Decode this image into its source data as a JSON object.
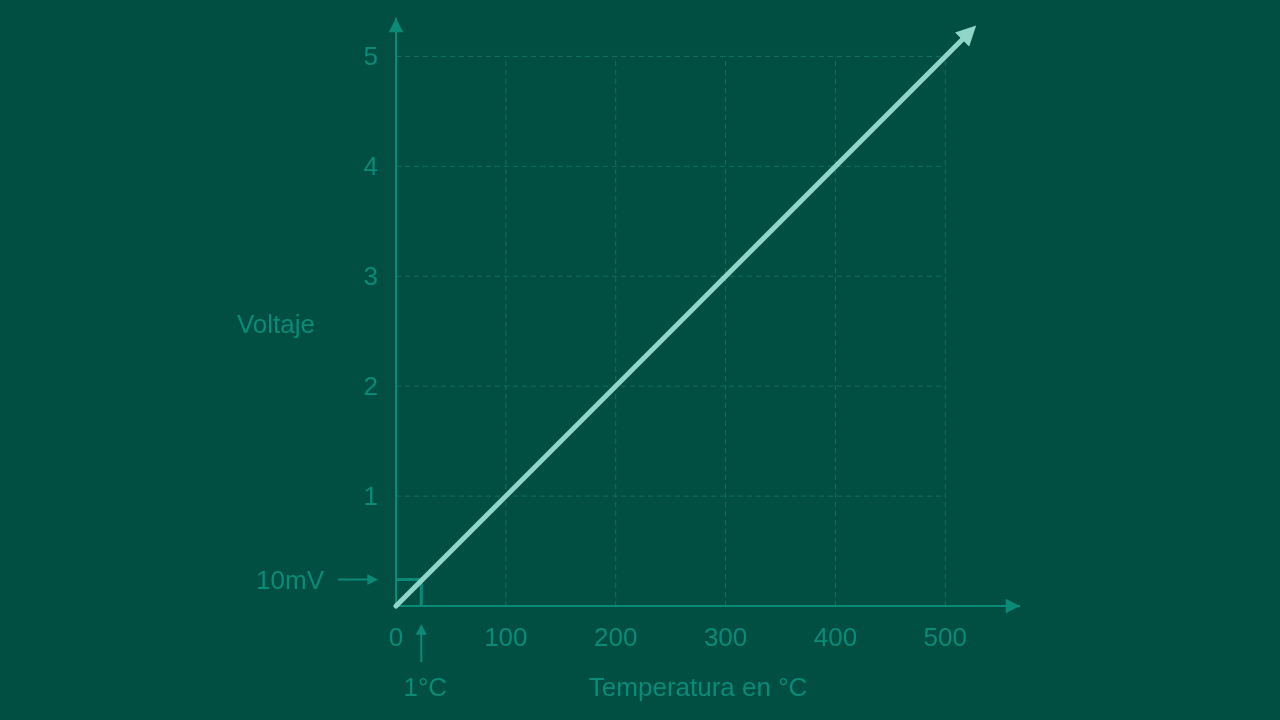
{
  "chart_data": {
    "type": "line",
    "xlabel": "Temperatura en °C",
    "ylabel": "Voltaje",
    "x": [
      0,
      523
    ],
    "series": [
      {
        "color": "#8fd6c9",
        "values": [
          0,
          5.23
        ]
      }
    ],
    "xlim": [
      0,
      568
    ],
    "ylim": [
      0,
      5.35
    ],
    "xticks": [
      0,
      100,
      200,
      300,
      400,
      500
    ],
    "yticks": [
      1,
      2,
      3,
      4,
      5
    ],
    "grid": true,
    "annotations": [
      "10mV",
      "1°C"
    ]
  }
}
